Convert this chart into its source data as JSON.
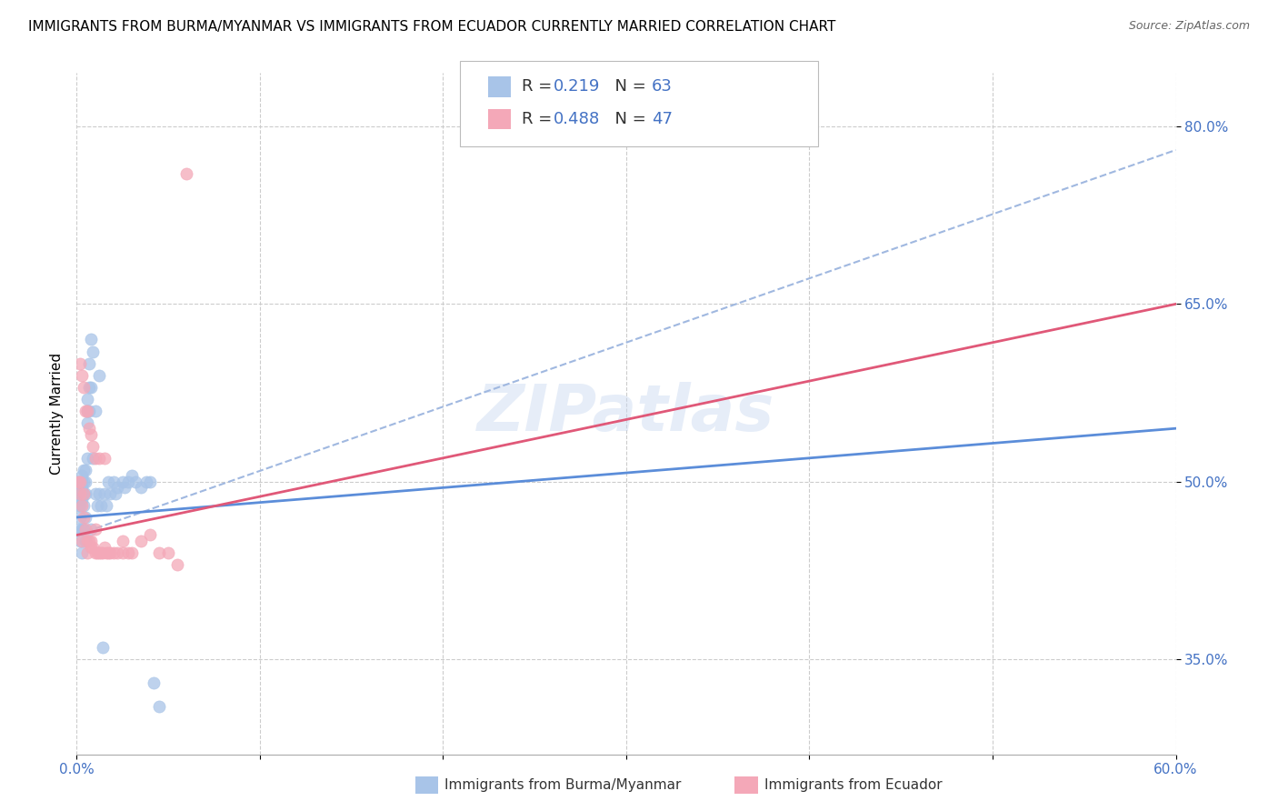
{
  "title": "IMMIGRANTS FROM BURMA/MYANMAR VS IMMIGRANTS FROM ECUADOR CURRENTLY MARRIED CORRELATION CHART",
  "source": "Source: ZipAtlas.com",
  "ylabel": "Currently Married",
  "legend_labels": [
    "Immigrants from Burma/Myanmar",
    "Immigrants from Ecuador"
  ],
  "series1": {
    "label": "Immigrants from Burma/Myanmar",
    "color": "#a8c4e8",
    "trendline_color": "#5b8dd9",
    "R": 0.219,
    "N": 63,
    "scatter_x": [
      0.001,
      0.001,
      0.001,
      0.001,
      0.002,
      0.002,
      0.002,
      0.002,
      0.002,
      0.002,
      0.003,
      0.003,
      0.003,
      0.003,
      0.003,
      0.003,
      0.003,
      0.004,
      0.004,
      0.004,
      0.004,
      0.004,
      0.005,
      0.005,
      0.005,
      0.005,
      0.005,
      0.006,
      0.006,
      0.006,
      0.006,
      0.007,
      0.007,
      0.007,
      0.008,
      0.008,
      0.008,
      0.009,
      0.009,
      0.01,
      0.01,
      0.011,
      0.012,
      0.012,
      0.013,
      0.014,
      0.015,
      0.016,
      0.017,
      0.018,
      0.02,
      0.021,
      0.022,
      0.025,
      0.026,
      0.028,
      0.03,
      0.032,
      0.035,
      0.038,
      0.04,
      0.042,
      0.045
    ],
    "scatter_y": [
      0.5,
      0.49,
      0.48,
      0.46,
      0.5,
      0.495,
      0.49,
      0.48,
      0.47,
      0.45,
      0.505,
      0.5,
      0.495,
      0.49,
      0.485,
      0.46,
      0.44,
      0.51,
      0.5,
      0.49,
      0.48,
      0.46,
      0.51,
      0.5,
      0.49,
      0.47,
      0.45,
      0.57,
      0.56,
      0.55,
      0.52,
      0.6,
      0.58,
      0.56,
      0.62,
      0.58,
      0.46,
      0.61,
      0.52,
      0.56,
      0.49,
      0.48,
      0.59,
      0.49,
      0.48,
      0.36,
      0.49,
      0.48,
      0.5,
      0.49,
      0.5,
      0.49,
      0.495,
      0.5,
      0.495,
      0.5,
      0.505,
      0.5,
      0.495,
      0.5,
      0.5,
      0.33,
      0.31
    ],
    "trendline_x": [
      0.0,
      0.6
    ],
    "trendline_y": [
      0.47,
      0.545
    ]
  },
  "series2": {
    "label": "Immigrants from Ecuador",
    "color": "#f4a8b8",
    "trendline_color": "#e05878",
    "R": 0.488,
    "N": 47,
    "scatter_x": [
      0.001,
      0.002,
      0.002,
      0.003,
      0.003,
      0.004,
      0.004,
      0.005,
      0.005,
      0.006,
      0.006,
      0.007,
      0.007,
      0.008,
      0.008,
      0.009,
      0.009,
      0.01,
      0.01,
      0.011,
      0.012,
      0.012,
      0.013,
      0.014,
      0.015,
      0.016,
      0.017,
      0.018,
      0.02,
      0.022,
      0.025,
      0.028,
      0.03,
      0.035,
      0.04,
      0.045,
      0.05,
      0.055,
      0.06,
      0.002,
      0.003,
      0.004,
      0.006,
      0.008,
      0.01,
      0.015,
      0.025
    ],
    "scatter_y": [
      0.5,
      0.6,
      0.49,
      0.59,
      0.48,
      0.58,
      0.47,
      0.56,
      0.46,
      0.56,
      0.45,
      0.545,
      0.45,
      0.54,
      0.445,
      0.53,
      0.445,
      0.52,
      0.44,
      0.44,
      0.44,
      0.52,
      0.44,
      0.44,
      0.52,
      0.44,
      0.44,
      0.44,
      0.44,
      0.44,
      0.44,
      0.44,
      0.44,
      0.45,
      0.455,
      0.44,
      0.44,
      0.43,
      0.76,
      0.5,
      0.45,
      0.49,
      0.44,
      0.45,
      0.46,
      0.445,
      0.45
    ],
    "trendline_x": [
      0.0,
      0.6
    ],
    "trendline_y": [
      0.455,
      0.65
    ]
  },
  "dashed_line": {
    "color": "#a0b8e0",
    "x": [
      0.0,
      0.6
    ],
    "y": [
      0.455,
      0.78
    ]
  },
  "xlim": [
    0.0,
    0.6
  ],
  "ylim": [
    0.27,
    0.845
  ],
  "ytick_vals": [
    0.35,
    0.5,
    0.65,
    0.8
  ],
  "ytick_labels": [
    "35.0%",
    "50.0%",
    "65.0%",
    "80.0%"
  ],
  "xtick_vals": [
    0.0,
    0.1,
    0.2,
    0.3,
    0.4,
    0.5,
    0.6
  ],
  "xtick_labels": [
    "0.0%",
    "",
    "",
    "",
    "",
    "",
    "60.0%"
  ],
  "watermark": "ZIPatlas",
  "legend_R_color": "#4472c4",
  "legend_N_color": "#4472c4",
  "tick_color": "#4472c4",
  "title_fontsize": 11,
  "source_fontsize": 9
}
